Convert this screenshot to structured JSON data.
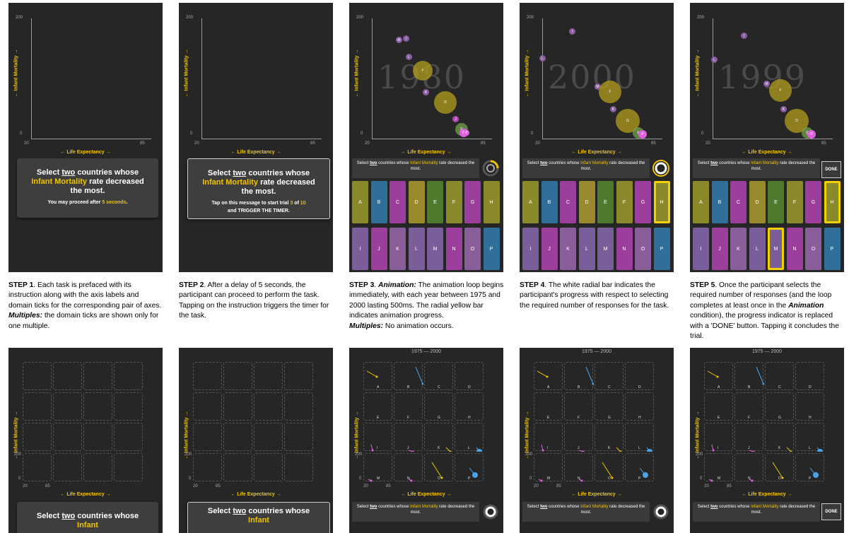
{
  "axis": {
    "y_label": "← Infant Mortality →",
    "x_label": "← Life Expectancy →",
    "y_max": "200",
    "y_min": "0",
    "x_min": "20",
    "x_max": "85"
  },
  "step1": {
    "instr_pre": "Select ",
    "instr_two": "two",
    "instr_mid": " countries whose ",
    "instr_hl": "Infant Mortality",
    "instr_post": " rate decreased the most.",
    "wait_pre": "You may proceed after ",
    "wait_hl": "5 seconds",
    "wait_post": ".",
    "caption_title": "STEP 1",
    "caption": ". Each task is prefaced with its instruction along with the axis labels and domain ticks for the corresponding pair of axes.",
    "caption_multiples_title": "Multiples:",
    "caption_multiples": " the domain ticks are shown only for one multiple."
  },
  "step2": {
    "tap_pre": "Tap on this message to start trial ",
    "trial": "3",
    "of": " of ",
    "total": "10",
    "trigger": "and TRIGGER THE TIMER.",
    "caption_title": "STEP 2",
    "caption": ". After a delay of 5 seconds, the participant can proceed to perform the task. Tapping on the instruction triggers the timer for the task."
  },
  "step3": {
    "year": "1980",
    "caption_title": "STEP 3",
    "caption_anim": "Animation:",
    "caption": " The animation loop begins immediately, with each year between 1975 and 2000 lasting 500ms. The radial yellow bar indicates animation progress.",
    "caption_multiples_title": "Multiples:",
    "caption_multiples": " No animation occurs."
  },
  "step4": {
    "year": "2000",
    "caption_title": "STEP 4",
    "caption": ". The white radial bar indicates the participant's progress with respect to selecting the required number of responses for the task."
  },
  "step5": {
    "year": "1999",
    "done": "DONE",
    "caption_title": "STEP 5",
    "caption_pre": ". Once the participant selects the required number of responses (and the loop completes at least once in the ",
    "caption_anim": "Animation",
    "caption_post": " condition), the progress indicator is replaced with a 'DONE' button. Tapping it concludes the trial."
  },
  "prompt": {
    "pre": "Select ",
    "two": "two",
    "mid": " countries whose ",
    "hl": "Infant Mortality",
    "post": " rate decreased the most."
  },
  "buttons": {
    "top": [
      "A",
      "B",
      "C",
      "D",
      "E",
      "F",
      "G",
      "H"
    ],
    "bottom": [
      "I",
      "J",
      "K",
      "L",
      "M",
      "N",
      "O",
      "P"
    ],
    "colors": [
      "#8a8a2c",
      "#2f6f9a",
      "#9c3f9c",
      "#9a8a2e",
      "#4f7a2e",
      "#8a8a2c",
      "#9c3f9c",
      "#8a8a2c",
      "#7a5e9a",
      "#9c3f9c",
      "#8a5e9a",
      "#7a5e9a",
      "#7a5e9a",
      "#9c3f9c",
      "#8a5e9a",
      "#2f6f9a"
    ]
  },
  "multiples": {
    "range": "1975 — 2000",
    "cells": [
      "A",
      "B",
      "C",
      "D",
      "E",
      "F",
      "G",
      "H",
      "I",
      "J",
      "K",
      "L",
      "M",
      "N",
      "O",
      "P"
    ]
  },
  "bottom_instr": {
    "pre": "Select ",
    "two": "two",
    "mid": " countries whose ",
    "hl": "Infant"
  }
}
